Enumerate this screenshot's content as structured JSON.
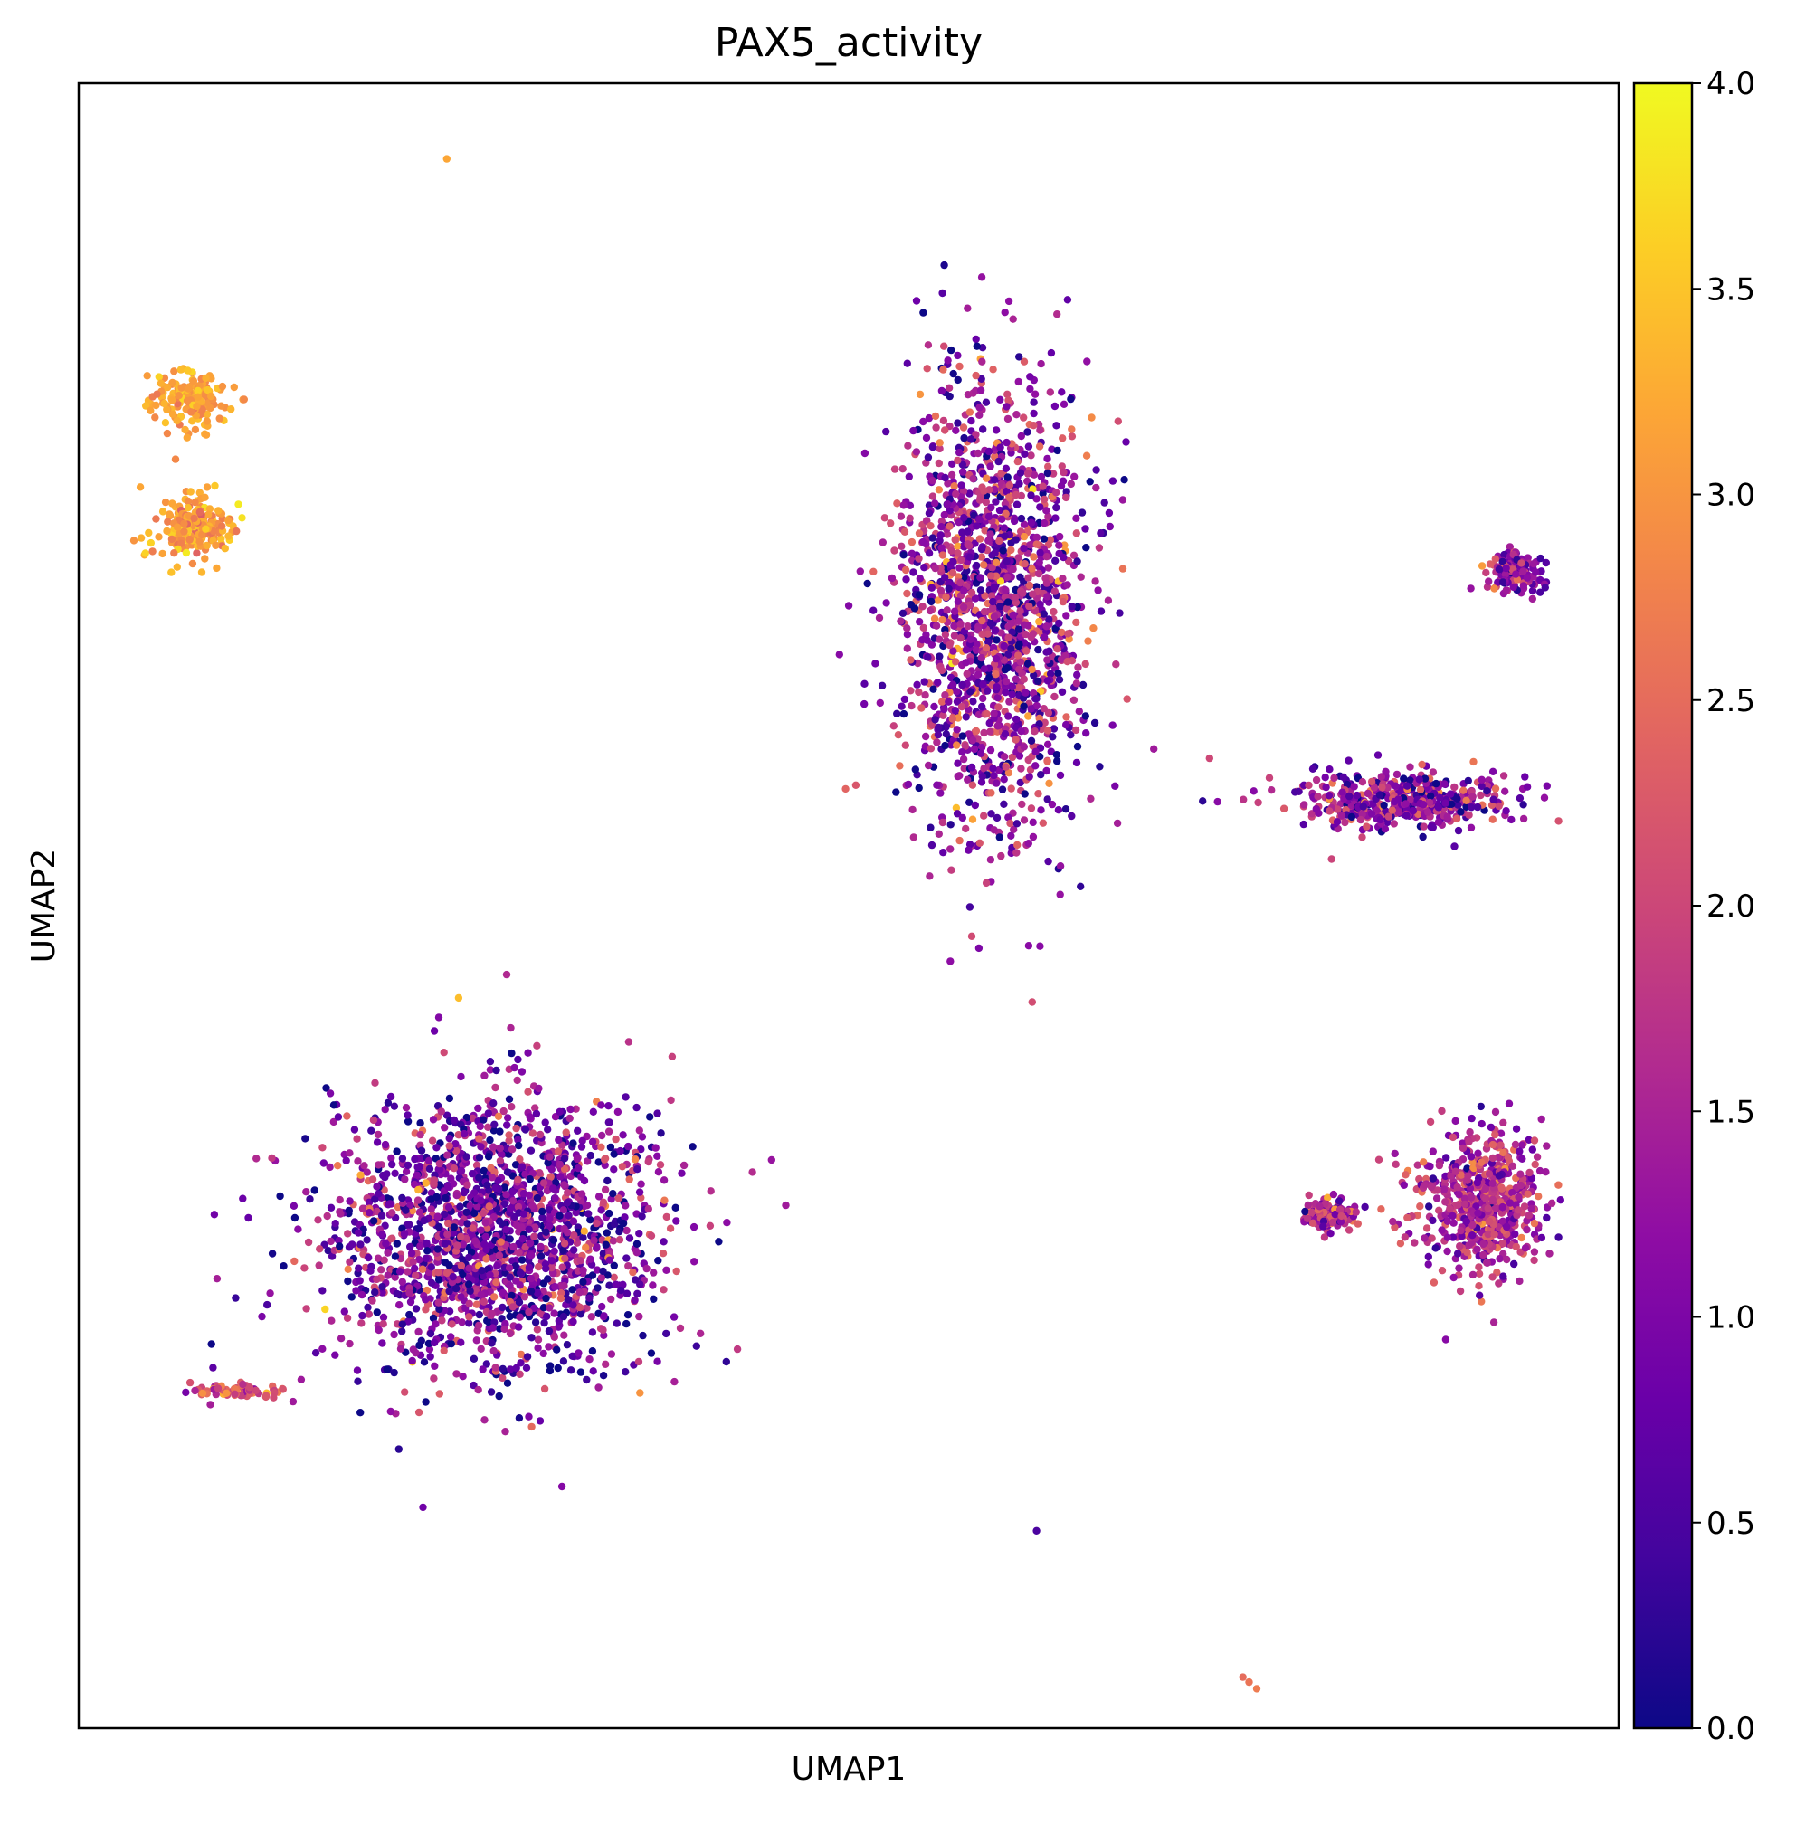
{
  "chart_data": {
    "type": "scatter",
    "title": "PAX5_activity",
    "xlabel": "UMAP1",
    "ylabel": "UMAP2",
    "xlim": [
      0,
      100
    ],
    "ylim": [
      0,
      100
    ],
    "grid": false,
    "colormap": "plasma",
    "colorbar": {
      "label": "",
      "min": 0.0,
      "max": 4.0,
      "ticks": [
        "0.0",
        "0.5",
        "1.0",
        "1.5",
        "2.0",
        "2.5",
        "3.0",
        "3.5",
        "4.0"
      ]
    },
    "clusters": [
      {
        "id": "upper-left-top",
        "center": [
          7.1,
          80.7
        ],
        "spread": [
          2.0,
          1.3
        ],
        "n": 160,
        "mean_value": 3.15,
        "value_sd": 0.25
      },
      {
        "id": "upper-left-bottom",
        "center": [
          7.3,
          73.0
        ],
        "spread": [
          2.3,
          1.7
        ],
        "n": 220,
        "mean_value": 3.1,
        "value_sd": 0.3
      },
      {
        "id": "upper-center",
        "center": [
          59.4,
          68.0
        ],
        "spread": [
          5.0,
          11.0
        ],
        "n": 1700,
        "mean_value": 1.3,
        "value_sd": 0.8
      },
      {
        "id": "right-small",
        "center": [
          93.1,
          70.3
        ],
        "spread": [
          1.5,
          1.0
        ],
        "n": 130,
        "mean_value": 1.2,
        "value_sd": 0.6
      },
      {
        "id": "right-streak",
        "center": [
          85.7,
          56.4
        ],
        "spread": [
          6.0,
          1.5
        ],
        "n": 450,
        "mean_value": 1.2,
        "value_sd": 0.7
      },
      {
        "id": "lower-left-large",
        "center": [
          27.0,
          30.0
        ],
        "spread": [
          9.0,
          7.0
        ],
        "n": 1900,
        "mean_value": 1.0,
        "value_sd": 0.8
      },
      {
        "id": "lower-left-streak",
        "center": [
          10.5,
          20.5
        ],
        "spread": [
          2.8,
          0.4
        ],
        "n": 70,
        "mean_value": 2.2,
        "value_sd": 0.5
      },
      {
        "id": "lower-right-cluster",
        "center": [
          91.0,
          32.0
        ],
        "spread": [
          3.3,
          3.5
        ],
        "n": 600,
        "mean_value": 1.6,
        "value_sd": 0.6
      },
      {
        "id": "lower-right-tail",
        "center": [
          81.2,
          31.2
        ],
        "spread": [
          1.4,
          0.8
        ],
        "n": 140,
        "mean_value": 1.6,
        "value_sd": 0.6
      }
    ],
    "outliers": [
      {
        "x": 23.9,
        "y": 95.4,
        "value": 3.2
      },
      {
        "x": 49.8,
        "y": 57.1,
        "value": 2.4
      },
      {
        "x": 62.2,
        "y": 12.0,
        "value": 0.5
      },
      {
        "x": 75.6,
        "y": 3.1,
        "value": 2.5
      },
      {
        "x": 76.0,
        "y": 2.8,
        "value": 2.6
      },
      {
        "x": 76.5,
        "y": 2.4,
        "value": 2.7
      }
    ]
  }
}
